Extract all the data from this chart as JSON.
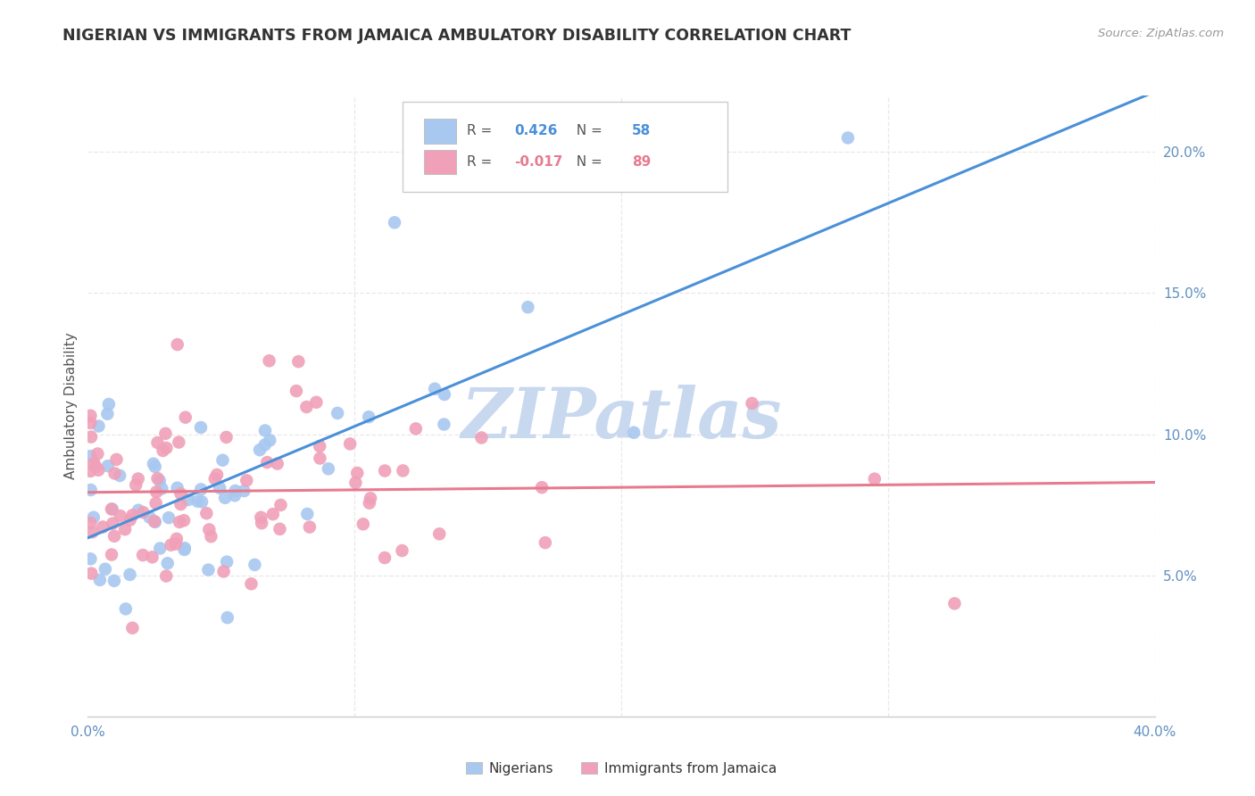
{
  "title": "NIGERIAN VS IMMIGRANTS FROM JAMAICA AMBULATORY DISABILITY CORRELATION CHART",
  "source": "Source: ZipAtlas.com",
  "ylabel": "Ambulatory Disability",
  "xlim": [
    0.0,
    0.4
  ],
  "ylim": [
    0.0,
    0.22
  ],
  "xtick_positions": [
    0.0,
    0.1,
    0.2,
    0.3,
    0.4
  ],
  "xticklabels": [
    "0.0%",
    "",
    "",
    "",
    "40.0%"
  ],
  "ytick_positions": [
    0.05,
    0.1,
    0.15,
    0.2
  ],
  "yticklabels": [
    "5.0%",
    "10.0%",
    "15.0%",
    "20.0%"
  ],
  "blue_R": 0.426,
  "blue_N": 58,
  "pink_R": -0.017,
  "pink_N": 89,
  "blue_color": "#A8C8F0",
  "pink_color": "#F0A0B8",
  "blue_line_color": "#4A90D9",
  "pink_line_color": "#E87A90",
  "watermark": "ZIPatlas",
  "watermark_color": "#C8D8EE",
  "grid_color": "#E8E8E8",
  "tick_color": "#6090C0",
  "label_color": "#555555",
  "legend_entry1_r": "0.426",
  "legend_entry1_n": "58",
  "legend_entry2_r": "-0.017",
  "legend_entry2_n": "89",
  "bottom_legend_labels": [
    "Nigerians",
    "Immigrants from Jamaica"
  ]
}
